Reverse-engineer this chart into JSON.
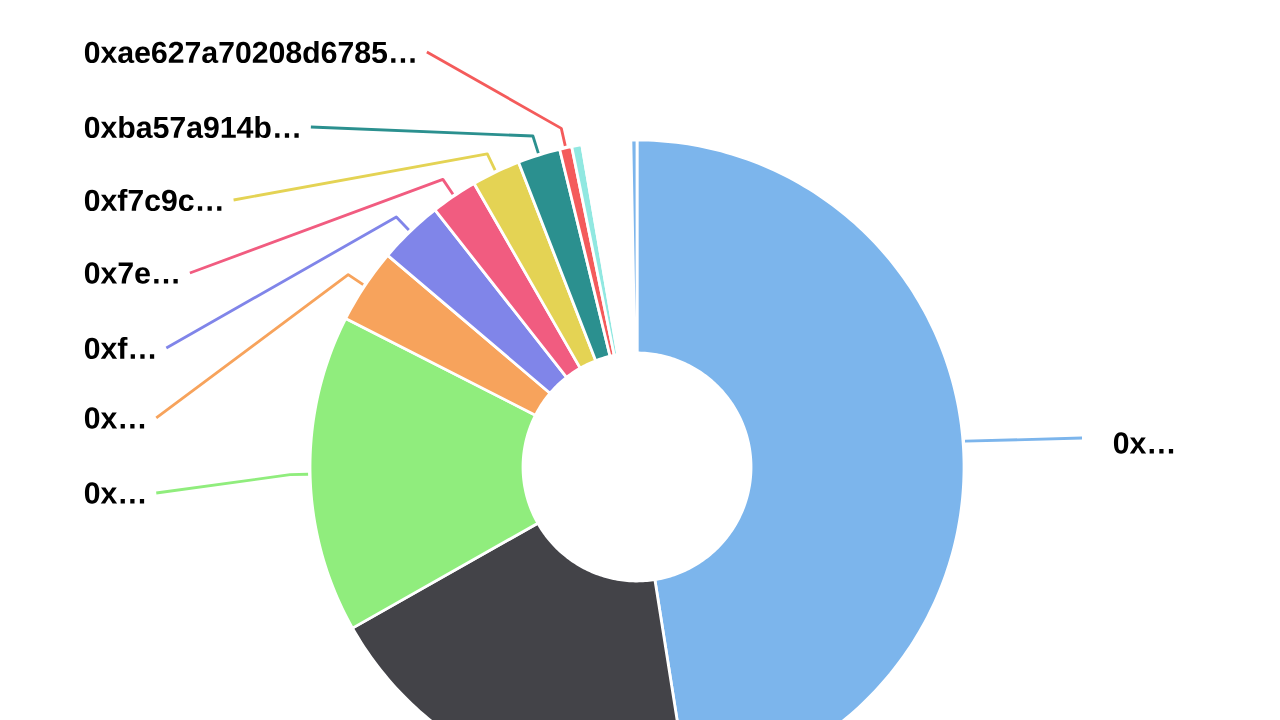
{
  "chart_data": {
    "type": "donut",
    "categories": [
      "0x…",
      null,
      "0x…",
      "0x…",
      "0xf…",
      "0x7e…",
      "0xf7c9c…",
      "0xba57a914b…",
      "0xae627a70208d6785…",
      null,
      null,
      null
    ],
    "values": [
      47.5,
      19.3,
      15.7,
      3.7,
      3.2,
      2.3,
      2.4,
      2.1,
      0.6,
      0.5,
      2.4,
      0.3
    ],
    "colors": [
      "#7cb5ec",
      "#434348",
      "#90ed7d",
      "#f7a35c",
      "#8085e9",
      "#f15c80",
      "#e4d354",
      "#2b908f",
      "#f45b5b",
      "#91e8e1",
      "#ffffff",
      "#7cb5ec"
    ]
  }
}
